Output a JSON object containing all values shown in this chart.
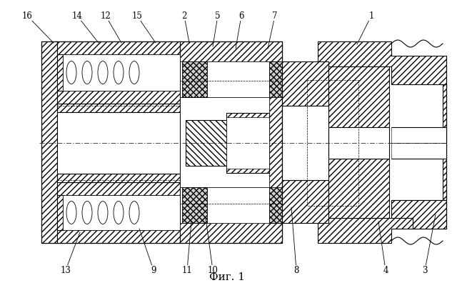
{
  "title": "Фиг. 1",
  "bg_color": "#ffffff",
  "line_color": "#000000",
  "labels_top": [
    [
      "16",
      38,
      22,
      75,
      60
    ],
    [
      "14",
      108,
      22,
      138,
      60
    ],
    [
      "12",
      148,
      22,
      170,
      60
    ],
    [
      "15",
      192,
      22,
      218,
      60
    ],
    [
      "2",
      258,
      22,
      265,
      60
    ],
    [
      "5",
      305,
      22,
      298,
      65
    ],
    [
      "6",
      338,
      22,
      330,
      68
    ],
    [
      "7",
      385,
      22,
      375,
      68
    ],
    [
      "1",
      520,
      22,
      500,
      62
    ]
  ],
  "labels_bot": [
    [
      "13",
      92,
      378,
      112,
      325
    ],
    [
      "9",
      215,
      378,
      195,
      320
    ],
    [
      "11",
      262,
      378,
      268,
      310
    ],
    [
      "10",
      298,
      378,
      288,
      305
    ],
    [
      "8",
      415,
      378,
      408,
      290
    ],
    [
      "4",
      540,
      378,
      530,
      310
    ],
    [
      "3",
      595,
      378,
      610,
      300
    ]
  ]
}
